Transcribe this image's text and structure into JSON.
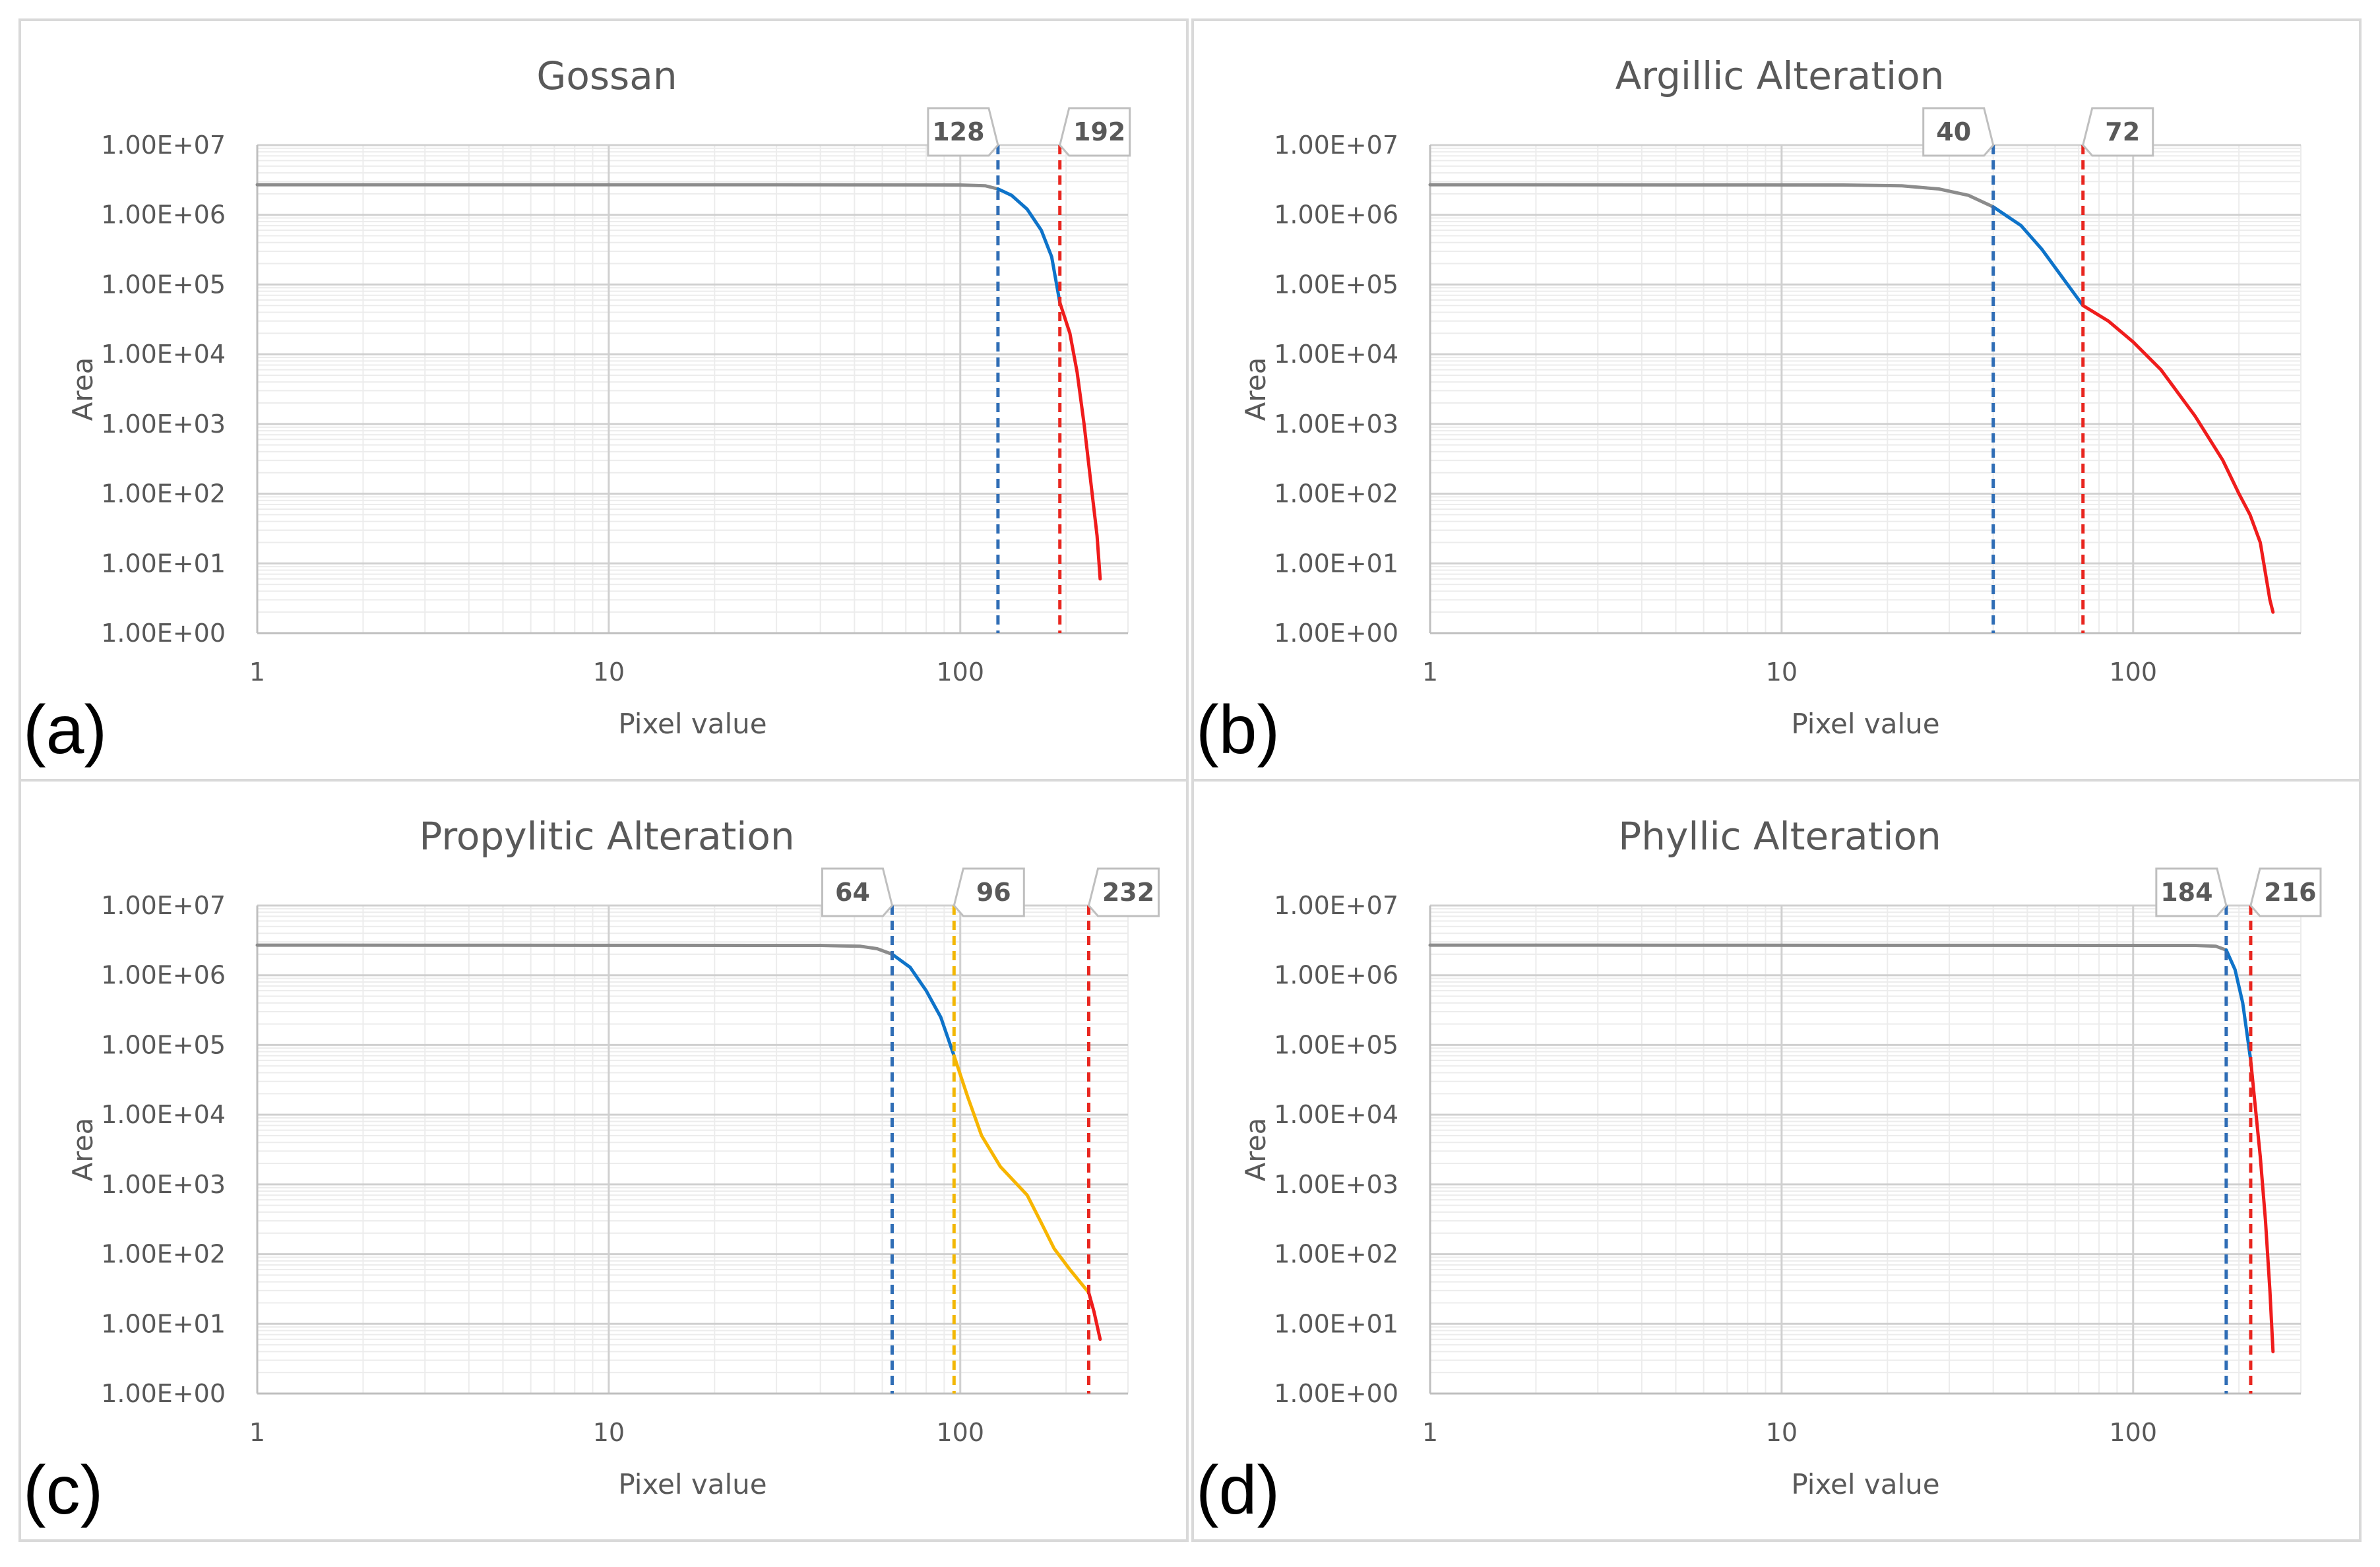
{
  "chart_data": [
    {
      "type": "line",
      "panel_label": "(a)",
      "title": "Gossan",
      "xlabel": "Pixel value",
      "ylabel": "Area",
      "x_scale": "log",
      "y_scale": "log",
      "xlim": [
        1,
        300
      ],
      "ylim": [
        1,
        10000000
      ],
      "x_ticks": [
        "1",
        "10",
        "100"
      ],
      "y_ticks": [
        "1.00E+00",
        "1.00E+01",
        "1.00E+02",
        "1.00E+03",
        "1.00E+04",
        "1.00E+05",
        "1.00E+06",
        "1.00E+07"
      ],
      "grid": true,
      "thresholds": [
        {
          "value": 128,
          "label": "128",
          "color": "#2f6db5"
        },
        {
          "value": 192,
          "label": "192",
          "color": "#e8261f"
        }
      ],
      "segments": [
        {
          "color": "#8c8c8c",
          "points": [
            [
              1,
              2700000
            ],
            [
              30,
              2700000
            ],
            [
              100,
              2680000
            ],
            [
              118,
              2600000
            ],
            [
              128,
              2350000
            ]
          ]
        },
        {
          "color": "#0e73c9",
          "points": [
            [
              128,
              2350000
            ],
            [
              140,
              1900000
            ],
            [
              155,
              1200000
            ],
            [
              170,
              600000
            ],
            [
              182,
              250000
            ],
            [
              192,
              55000
            ]
          ]
        },
        {
          "color": "#ef1c1c",
          "points": [
            [
              192,
              55000
            ],
            [
              205,
              20000
            ],
            [
              215,
              5500
            ],
            [
              225,
              1000
            ],
            [
              235,
              150
            ],
            [
              245,
              25
            ],
            [
              250,
              6
            ]
          ]
        }
      ]
    },
    {
      "type": "line",
      "panel_label": "(b)",
      "title": "Argillic Alteration",
      "xlabel": "Pixel value",
      "ylabel": "Area",
      "x_scale": "log",
      "y_scale": "log",
      "xlim": [
        1,
        300
      ],
      "ylim": [
        1,
        10000000
      ],
      "x_ticks": [
        "1",
        "10",
        "100"
      ],
      "y_ticks": [
        "1.00E+00",
        "1.00E+01",
        "1.00E+02",
        "1.00E+03",
        "1.00E+04",
        "1.00E+05",
        "1.00E+06",
        "1.00E+07"
      ],
      "grid": true,
      "thresholds": [
        {
          "value": 40,
          "label": "40",
          "color": "#2f6db5"
        },
        {
          "value": 72,
          "label": "72",
          "color": "#e8261f"
        }
      ],
      "segments": [
        {
          "color": "#8c8c8c",
          "points": [
            [
              1,
              2700000
            ],
            [
              15,
              2680000
            ],
            [
              22,
              2600000
            ],
            [
              28,
              2350000
            ],
            [
              34,
              1900000
            ],
            [
              40,
              1300000
            ]
          ]
        },
        {
          "color": "#0e73c9",
          "points": [
            [
              40,
              1300000
            ],
            [
              48,
              700000
            ],
            [
              55,
              320000
            ],
            [
              62,
              140000
            ],
            [
              72,
              50000
            ]
          ]
        },
        {
          "color": "#ef1c1c",
          "points": [
            [
              72,
              50000
            ],
            [
              85,
              30000
            ],
            [
              100,
              15000
            ],
            [
              120,
              6000
            ],
            [
              150,
              1300
            ],
            [
              180,
              300
            ],
            [
              200,
              100
            ],
            [
              215,
              50
            ],
            [
              230,
              20
            ],
            [
              245,
              3
            ],
            [
              250,
              2
            ]
          ]
        }
      ]
    },
    {
      "type": "line",
      "panel_label": "(c)",
      "title": "Propylitic Alteration",
      "xlabel": "Pixel value",
      "ylabel": "Area",
      "x_scale": "log",
      "y_scale": "log",
      "xlim": [
        1,
        300
      ],
      "ylim": [
        1,
        10000000
      ],
      "x_ticks": [
        "1",
        "10",
        "100"
      ],
      "y_ticks": [
        "1.00E+00",
        "1.00E+01",
        "1.00E+02",
        "1.00E+03",
        "1.00E+04",
        "1.00E+05",
        "1.00E+06",
        "1.00E+07"
      ],
      "grid": true,
      "thresholds": [
        {
          "value": 64,
          "label": "64",
          "color": "#2f6db5"
        },
        {
          "value": 96,
          "label": "96",
          "color": "#f2b705"
        },
        {
          "value": 232,
          "label": "232",
          "color": "#e8261f"
        }
      ],
      "segments": [
        {
          "color": "#8c8c8c",
          "points": [
            [
              1,
              2700000
            ],
            [
              40,
              2680000
            ],
            [
              52,
              2600000
            ],
            [
              58,
              2400000
            ],
            [
              64,
              2000000
            ]
          ]
        },
        {
          "color": "#0e73c9",
          "points": [
            [
              64,
              2000000
            ],
            [
              72,
              1300000
            ],
            [
              80,
              600000
            ],
            [
              88,
              250000
            ],
            [
              96,
              70000
            ]
          ]
        },
        {
          "color": "#f7b500",
          "points": [
            [
              96,
              70000
            ],
            [
              105,
              18000
            ],
            [
              115,
              5000
            ],
            [
              130,
              1800
            ],
            [
              155,
              700
            ],
            [
              170,
              280
            ],
            [
              185,
              120
            ],
            [
              205,
              60
            ],
            [
              232,
              28
            ]
          ]
        },
        {
          "color": "#ef1c1c",
          "points": [
            [
              232,
              28
            ],
            [
              240,
              15
            ],
            [
              250,
              6
            ]
          ]
        }
      ]
    },
    {
      "type": "line",
      "panel_label": "(d)",
      "title": "Phyllic Alteration",
      "xlabel": "Pixel value",
      "ylabel": "Area",
      "x_scale": "log",
      "y_scale": "log",
      "xlim": [
        1,
        300
      ],
      "ylim": [
        1,
        10000000
      ],
      "x_ticks": [
        "1",
        "10",
        "100"
      ],
      "y_ticks": [
        "1.00E+00",
        "1.00E+01",
        "1.00E+02",
        "1.00E+03",
        "1.00E+04",
        "1.00E+05",
        "1.00E+06",
        "1.00E+07"
      ],
      "grid": true,
      "thresholds": [
        {
          "value": 184,
          "label": "184",
          "color": "#2f6db5"
        },
        {
          "value": 216,
          "label": "216",
          "color": "#e8261f"
        }
      ],
      "segments": [
        {
          "color": "#8c8c8c",
          "points": [
            [
              1,
              2700000
            ],
            [
              150,
              2680000
            ],
            [
              172,
              2600000
            ],
            [
              184,
              2300000
            ]
          ]
        },
        {
          "color": "#0e73c9",
          "points": [
            [
              184,
              2300000
            ],
            [
              195,
              1200000
            ],
            [
              205,
              400000
            ],
            [
              216,
              60000
            ]
          ]
        },
        {
          "color": "#ef1c1c",
          "points": [
            [
              216,
              60000
            ],
            [
              222,
              15000
            ],
            [
              230,
              2500
            ],
            [
              238,
              300
            ],
            [
              245,
              30
            ],
            [
              250,
              4
            ]
          ]
        }
      ]
    }
  ]
}
